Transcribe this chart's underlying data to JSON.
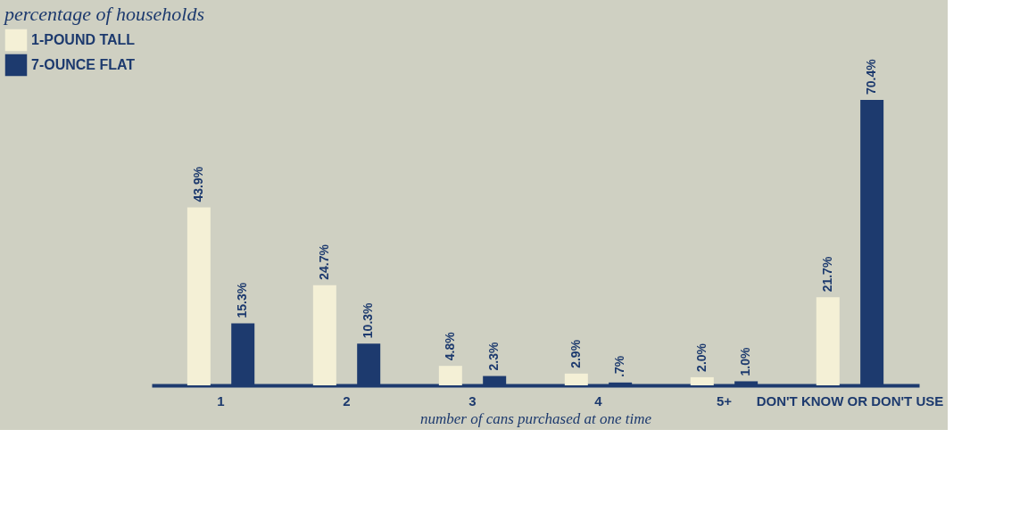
{
  "chart_data": {
    "type": "bar",
    "title": "percentage of households",
    "xlabel": "number of cans purchased at one time",
    "categories": [
      "1",
      "2",
      "3",
      "4",
      "5+",
      "DON'T KNOW OR DON'T USE"
    ],
    "series": [
      {
        "name": "1-POUND TALL",
        "color": "#f4f0d6",
        "values": [
          43.9,
          24.7,
          4.8,
          2.9,
          2.0,
          21.7
        ],
        "value_labels": [
          "43.9%",
          "24.7%",
          "4.8%",
          "2.9%",
          "2.0%",
          "21.7%"
        ]
      },
      {
        "name": "7-OUNCE FLAT",
        "color": "#1d3a6e",
        "values": [
          15.3,
          10.3,
          2.3,
          0.7,
          1.0,
          70.4
        ],
        "value_labels": [
          "15.3%",
          "10.3%",
          "2.3%",
          ".7%",
          "1.0%",
          "70.4%"
        ]
      }
    ],
    "legend": "left",
    "grid": false
  }
}
